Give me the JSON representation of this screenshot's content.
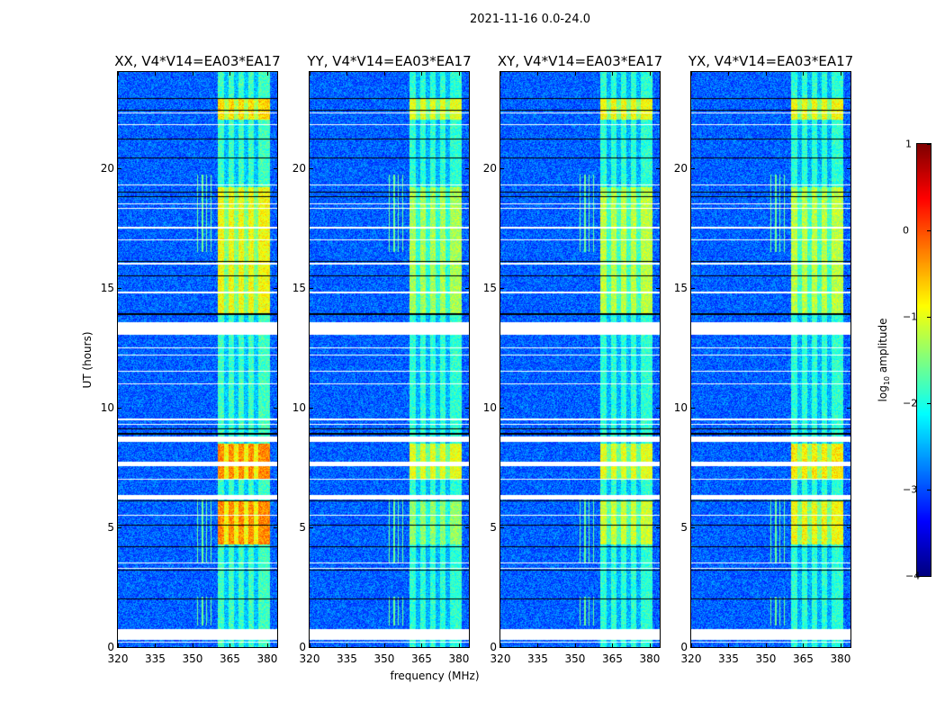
{
  "chart_data": {
    "type": "heatmap",
    "title": "2021-11-16 0.0-24.0",
    "xlabel": "frequency (MHz)",
    "ylabel": "UT (hours)",
    "xlim": [
      320,
      384
    ],
    "ylim": [
      0,
      24
    ],
    "xticks": [
      320,
      335,
      350,
      365,
      380
    ],
    "yticks": [
      0,
      5,
      10,
      15,
      20
    ],
    "background_log10_amplitude": -2.9,
    "rfi_band_mhz": [
      360,
      381
    ],
    "rfi_channel_gaps_mhz": [
      363.5,
      367.5,
      371.5,
      375.5
    ],
    "narrow_rfi_lines_mhz": [
      352,
      354,
      355.5,
      357.5
    ],
    "narrow_rfi_ut_ranges": [
      [
        0.9,
        2.1
      ],
      [
        3.5,
        6.2
      ],
      [
        16.5,
        19.7
      ]
    ],
    "flagged_ut_ranges_white": [
      [
        0.3,
        0.75
      ],
      [
        6.15,
        6.35
      ],
      [
        7.55,
        7.75
      ],
      [
        8.55,
        8.8
      ],
      [
        13.05,
        13.55
      ]
    ],
    "flagged_ut_lines_white": [
      0.2,
      3.3,
      3.5,
      5.5,
      7.0,
      9.3,
      9.5,
      11.0,
      11.5,
      12.2,
      12.5,
      14.8,
      16.0,
      17.0,
      17.5,
      18.3,
      18.5,
      19.3,
      21.8,
      22.3
    ],
    "flagged_ut_lines_black": [
      2.0,
      3.2,
      4.2,
      5.1,
      6.1,
      8.9,
      9.1,
      13.9,
      15.5,
      16.1,
      18.8,
      19.0,
      20.4,
      21.2,
      22.4,
      22.9
    ],
    "panels": [
      {
        "title": "XX, V4*V14=EA03*EA17",
        "band_level": -1.8,
        "strong_regions": [
          {
            "ut": [
              4.3,
              6.1
            ],
            "level": -0.3
          },
          {
            "ut": [
              7.0,
              8.5
            ],
            "level": -0.3
          },
          {
            "ut": [
              13.9,
              19.2
            ],
            "level": -0.9
          },
          {
            "ut": [
              22.0,
              22.9
            ],
            "level": -0.7
          }
        ]
      },
      {
        "title": "YY, V4*V14=EA03*EA17",
        "band_level": -1.9,
        "strong_regions": [
          {
            "ut": [
              4.3,
              6.1
            ],
            "level": -1.4
          },
          {
            "ut": [
              7.0,
              8.5
            ],
            "level": -1.0
          },
          {
            "ut": [
              13.9,
              19.2
            ],
            "level": -1.3
          },
          {
            "ut": [
              22.0,
              22.9
            ],
            "level": -1.0
          }
        ]
      },
      {
        "title": "XY, V4*V14=EA03*EA17",
        "band_level": -1.9,
        "strong_regions": [
          {
            "ut": [
              4.3,
              6.1
            ],
            "level": -1.1
          },
          {
            "ut": [
              7.0,
              8.5
            ],
            "level": -1.0
          },
          {
            "ut": [
              13.9,
              19.2
            ],
            "level": -1.2
          },
          {
            "ut": [
              22.0,
              22.9
            ],
            "level": -0.9
          }
        ]
      },
      {
        "title": "YX, V4*V14=EA03*EA17",
        "band_level": -1.9,
        "strong_regions": [
          {
            "ut": [
              4.3,
              6.1
            ],
            "level": -0.9
          },
          {
            "ut": [
              7.0,
              8.5
            ],
            "level": -0.8
          },
          {
            "ut": [
              13.9,
              19.2
            ],
            "level": -1.2
          },
          {
            "ut": [
              22.0,
              22.9
            ],
            "level": -0.9
          }
        ]
      }
    ],
    "colorbar": {
      "label": "log10 amplitude",
      "label_base": "log",
      "label_sub": "10",
      "label_rest": " amplitude",
      "range": [
        -4,
        1
      ],
      "ticks": [
        "−4",
        "−3",
        "−2",
        "−1",
        "0",
        "1"
      ],
      "colormap": "jet"
    }
  }
}
